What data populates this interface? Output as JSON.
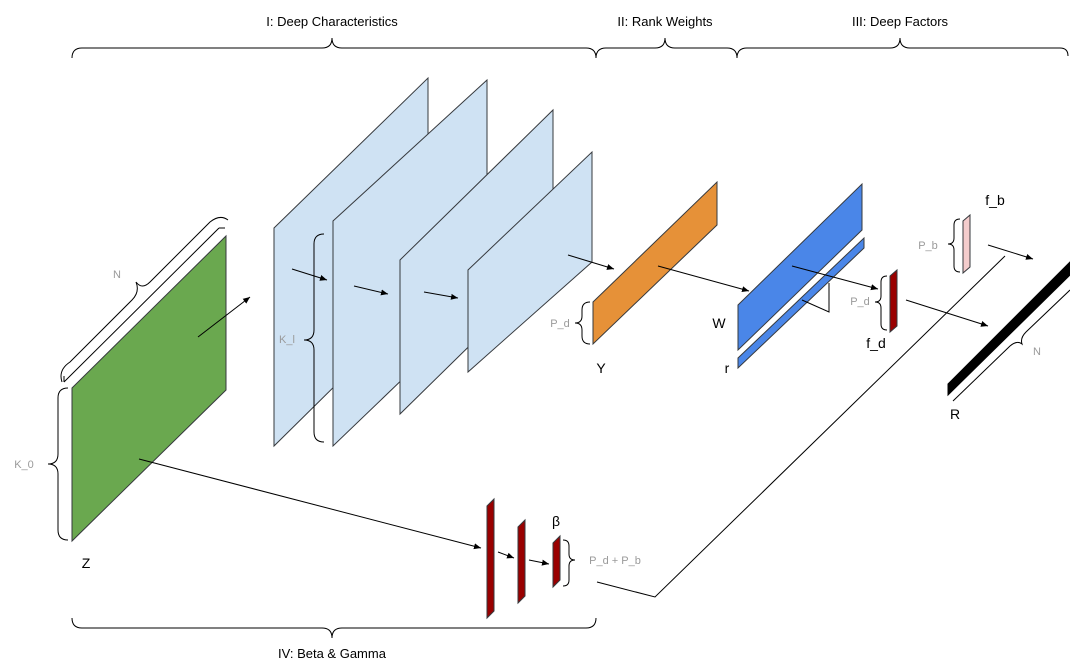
{
  "sections": {
    "deep_characteristics": "I: Deep Characteristics",
    "rank_weights": "II: Rank Weights",
    "deep_factors": "III: Deep Factors",
    "beta_gamma": "IV: Beta & Gamma"
  },
  "labels": {
    "Z": "Z",
    "Y": "Y",
    "W": "W",
    "r": "r",
    "f_d": "f_d",
    "f_b": "f_b",
    "R": "R",
    "beta": "β"
  },
  "dims": {
    "N_z": "N",
    "K_0": "K_0",
    "K_l": "K_l",
    "P_d_y": "P_d",
    "P_d_f": "P_d",
    "P_b": "P_b",
    "N_r": "N",
    "P_d_plus_P_b": "P_d + P_b"
  },
  "colors": {
    "green": "#6aa84f",
    "light_blue": "#cfe2f3",
    "orange": "#e69138",
    "blue": "#4a86e8",
    "dark_red": "#990000",
    "light_pink": "#f4cccc",
    "black": "#000000"
  }
}
